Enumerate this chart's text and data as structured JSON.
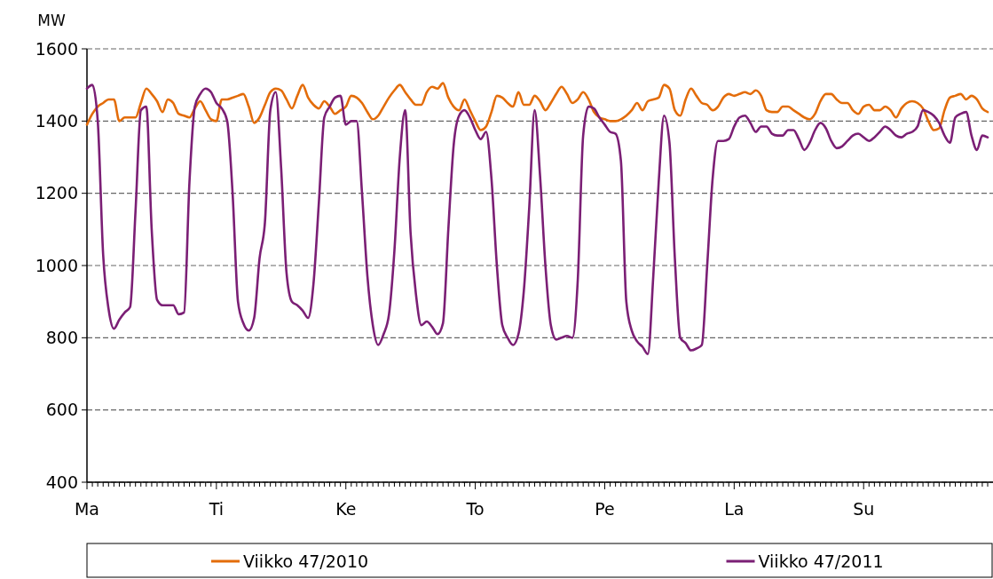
{
  "chart_data": {
    "type": "line",
    "ylabel": "MW",
    "ylim": [
      400,
      1600
    ],
    "yticks": [
      400,
      600,
      800,
      1000,
      1200,
      1400,
      1600
    ],
    "categories": [
      "Ma",
      null,
      null,
      null,
      null,
      null,
      null,
      null,
      null,
      null,
      null,
      null,
      null,
      null,
      null,
      null,
      null,
      null,
      null,
      null,
      null,
      null,
      null,
      null,
      "Ti",
      null,
      null,
      null,
      null,
      null,
      null,
      null,
      null,
      null,
      null,
      null,
      null,
      null,
      null,
      null,
      null,
      null,
      null,
      null,
      null,
      null,
      null,
      null,
      "Ke",
      null,
      null,
      null,
      null,
      null,
      null,
      null,
      null,
      null,
      null,
      null,
      null,
      null,
      null,
      null,
      null,
      null,
      null,
      null,
      null,
      null,
      null,
      null,
      "To",
      null,
      null,
      null,
      null,
      null,
      null,
      null,
      null,
      null,
      null,
      null,
      null,
      null,
      null,
      null,
      null,
      null,
      null,
      null,
      null,
      null,
      null,
      null,
      "Pe",
      null,
      null,
      null,
      null,
      null,
      null,
      null,
      null,
      null,
      null,
      null,
      null,
      null,
      null,
      null,
      null,
      null,
      null,
      null,
      null,
      null,
      null,
      null,
      "La",
      null,
      null,
      null,
      null,
      null,
      null,
      null,
      null,
      null,
      null,
      null,
      null,
      null,
      null,
      null,
      null,
      null,
      null,
      null,
      null,
      null,
      null,
      null,
      "Su",
      null,
      null,
      null,
      null,
      null,
      null,
      null,
      null,
      null,
      null,
      null,
      null,
      null,
      null,
      null,
      null,
      null,
      null,
      null,
      null,
      null,
      null,
      null
    ],
    "grid": "y",
    "legend": "bottom",
    "series": [
      {
        "name": "Viikko 47/2010",
        "color": "#e36c0a",
        "values": [
          1390,
          1420,
          1440,
          1450,
          1460,
          1460,
          1400,
          1410,
          1410,
          1410,
          1450,
          1490,
          1475,
          1455,
          1425,
          1460,
          1450,
          1420,
          1415,
          1410,
          1435,
          1455,
          1430,
          1405,
          1400,
          1460,
          1460,
          1465,
          1470,
          1475,
          1440,
          1395,
          1410,
          1445,
          1480,
          1490,
          1485,
          1460,
          1435,
          1470,
          1500,
          1465,
          1445,
          1435,
          1455,
          1440,
          1420,
          1430,
          1440,
          1470,
          1465,
          1450,
          1425,
          1405,
          1415,
          1440,
          1465,
          1485,
          1500,
          1480,
          1460,
          1445,
          1445,
          1480,
          1495,
          1490,
          1505,
          1465,
          1440,
          1430,
          1460,
          1430,
          1400,
          1375,
          1385,
          1425,
          1470,
          1465,
          1450,
          1440,
          1480,
          1445,
          1445,
          1470,
          1455,
          1430,
          1450,
          1475,
          1495,
          1475,
          1450,
          1460,
          1480,
          1460,
          1425,
          1410,
          1405,
          1400,
          1400,
          1405,
          1415,
          1430,
          1450,
          1430,
          1455,
          1460,
          1465,
          1500,
          1490,
          1430,
          1415,
          1460,
          1490,
          1470,
          1450,
          1445,
          1430,
          1440,
          1465,
          1475,
          1470,
          1475,
          1480,
          1475,
          1485,
          1470,
          1430,
          1425,
          1425,
          1440,
          1440,
          1430,
          1420,
          1410,
          1405,
          1420,
          1455,
          1475,
          1475,
          1460,
          1450,
          1450,
          1430,
          1420,
          1440,
          1445,
          1430,
          1430,
          1440,
          1430,
          1410,
          1435,
          1450,
          1455,
          1450,
          1435,
          1400,
          1375,
          1380,
          1430,
          1465,
          1470,
          1475,
          1460,
          1470,
          1460,
          1435,
          1425
        ]
      },
      {
        "name": "Viikko 47/2011",
        "color": "#7b1f75",
        "values": [
          1490,
          1500,
          1400,
          1030,
          880,
          825,
          850,
          870,
          885,
          1150,
          1430,
          1440,
          1100,
          905,
          890,
          890,
          890,
          865,
          870,
          1230,
          1440,
          1475,
          1490,
          1480,
          1450,
          1435,
          1400,
          1200,
          900,
          840,
          820,
          855,
          1020,
          1120,
          1430,
          1480,
          1270,
          980,
          900,
          890,
          875,
          855,
          950,
          1175,
          1410,
          1440,
          1465,
          1470,
          1390,
          1400,
          1400,
          1200,
          970,
          835,
          780,
          810,
          865,
          1040,
          1300,
          1430,
          1090,
          920,
          835,
          845,
          830,
          810,
          840,
          1100,
          1335,
          1415,
          1430,
          1410,
          1375,
          1350,
          1370,
          1240,
          1000,
          835,
          800,
          780,
          810,
          930,
          1160,
          1430,
          1250,
          1000,
          835,
          795,
          800,
          805,
          800,
          960,
          1360,
          1440,
          1435,
          1410,
          1390,
          1370,
          1365,
          1290,
          900,
          820,
          790,
          775,
          755,
          970,
          1230,
          1415,
          1340,
          1020,
          800,
          785,
          765,
          770,
          780,
          1000,
          1240,
          1345,
          1345,
          1350,
          1385,
          1410,
          1415,
          1395,
          1370,
          1385,
          1385,
          1365,
          1360,
          1360,
          1375,
          1375,
          1350,
          1320,
          1340,
          1375,
          1395,
          1380,
          1345,
          1325,
          1330,
          1345,
          1360,
          1365,
          1355,
          1345,
          1355,
          1370,
          1385,
          1375,
          1360,
          1355,
          1365,
          1370,
          1385,
          1430,
          1425,
          1415,
          1395,
          1360,
          1340,
          1410,
          1420,
          1425,
          1360,
          1320,
          1360,
          1355
        ]
      }
    ]
  }
}
